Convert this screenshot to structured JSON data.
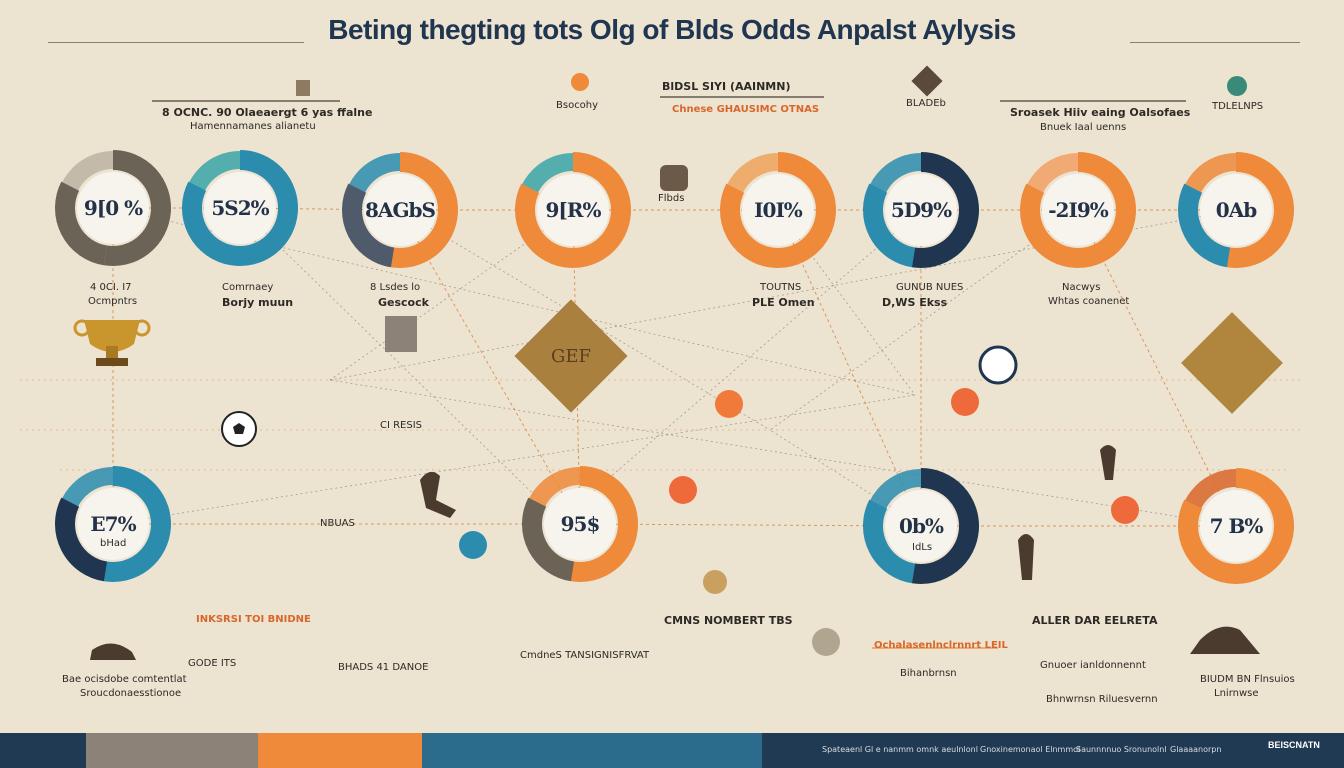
{
  "title": "Beting thegting tots Olg of Blds Odds Anpalst Aylysis",
  "colors": {
    "background": "#ece3d1",
    "navy": "#1f3550",
    "teal": "#2b8cae",
    "orange": "#ee8a3a",
    "gray": "#6c6357",
    "gold": "#b08a4a"
  },
  "rings": [
    {
      "label": "9[0 %",
      "colors": [
        "#6c6357",
        "#6c6357",
        "#bdb3a3"
      ]
    },
    {
      "label": "5S2%",
      "colors": [
        "#2b8cae",
        "#2b8cae",
        "#3aa4a8"
      ]
    },
    {
      "label": "8AGbS",
      "colors": [
        "#ee8a3a",
        "#4f5a6b",
        "#2b8cae"
      ]
    },
    {
      "label": "9[R%",
      "colors": [
        "#ee8a3a",
        "#ee8a3a",
        "#3aa4a8"
      ]
    },
    {
      "label": "I0I%",
      "colors": [
        "#ee8a3a",
        "#ee8a3a",
        "#f0a35c"
      ]
    },
    {
      "label": "5D9%",
      "colors": [
        "#1f3550",
        "#2b8cae",
        "#2b8cae"
      ]
    },
    {
      "label": "-2I9%",
      "colors": [
        "#ee8a3a",
        "#ee8a3a",
        "#f3a064"
      ]
    },
    {
      "label": "0Ab",
      "colors": [
        "#ee8a3a",
        "#2b8cae",
        "#ee8a3a"
      ]
    },
    {
      "label": "E7%",
      "colors": [
        "#2b8cae",
        "#1f3550",
        "#2b8cae"
      ]
    },
    {
      "label": "95$",
      "colors": [
        "#ee8a3a",
        "#6c6357",
        "#ee8a3a"
      ]
    },
    {
      "label": "0b%",
      "colors": [
        "#1f3550",
        "#2b8cae",
        "#2b8cae"
      ]
    },
    {
      "label": "7 B%",
      "colors": [
        "#ee8a3a",
        "#ee8a3a",
        "#d9662a"
      ]
    }
  ],
  "labels": {
    "top_left_header": "8 OCNC. 90 Olaeaergt 6 yas ffalne",
    "top_left_sub": "Hamennamanes alianetu",
    "sportiv": "Bsocohy",
    "bldsl_header": "BlDSL SIYI (AAINMN)",
    "chnese": "Chnese GHAUSIMC OTNAS",
    "cladeb": "BLADEb",
    "spreak_header": "Sroasek Hiiv eaing Oalsofaes",
    "spreak_sub": "Bnuek Iaal uenns",
    "tdlelnps": "TDLELNPS",
    "flhads": "Flbds",
    "four_oo": "4 0CI. I7",
    "ocmpntrs": "Ocmpntrs",
    "comrne": "Comrnaey",
    "borjy": "Borjy muun",
    "ssade": "8 Lsdes lo",
    "cescock": "Gescock",
    "toutns": "TOUTNS",
    "pleomn": "PLE Omen",
    "ucdfnns": "GUNUB NUES",
    "djs_eks": "D,WS Ekss",
    "nacwy": "Nacwys",
    "whtas": "Whtas coanenet",
    "cl_resis": "CI RESIS",
    "nbuas": "NBUAS",
    "bhad": "bHad",
    "idls": "IdLs",
    "inusrsr": "INKSRSI TOI BNIDNE",
    "cmns": "CMNS NOMBERT TBS",
    "allerd": "ALLER DAR EELRETA",
    "ochai": "Ochalasenlnclrnnrt LEIL",
    "glaouer": "Gnuoer ianldonnennt",
    "bottom_left": "Bae ocisdobe comtentlat",
    "bottom_left2": "Sroucdonaesstionoe",
    "godd": "GODE ITS",
    "bhads": "BHADS 41 DANOE",
    "cmdnes": "CmdneS TANSIGNISFRVAT",
    "blnbrw": "Bihanbrnsn",
    "bhnrnws": "Bhnwrnsn Riluesvernn",
    "brudm": "BIUDM BN Flnsuios",
    "lnirnwse": "Lnirnwse"
  },
  "footer": {
    "colors": [
      "#1f3a52",
      "#8c8277",
      "#ee8a3a",
      "#2b6c8c",
      "#1f3a52"
    ],
    "texts": [
      "Spateaenl Gl e nanmm omnk aeulnlonl",
      "Gnoxinemonaol Elnmmol",
      "Saunnnnuo Sronunolnl",
      "Glaaaanorpn",
      "BEISCNATN"
    ]
  }
}
